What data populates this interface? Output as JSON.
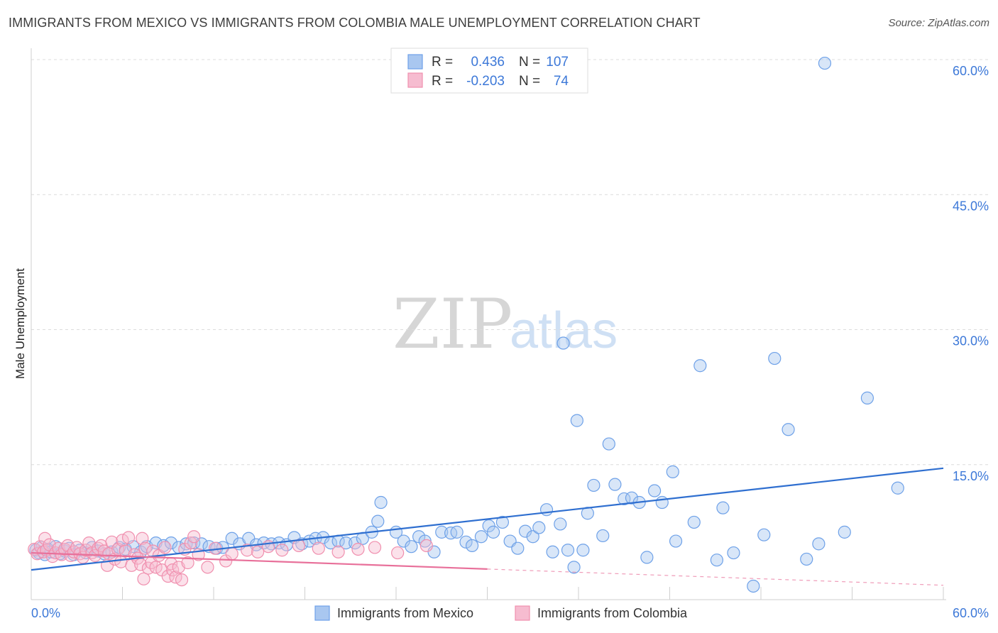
{
  "title": "IMMIGRANTS FROM MEXICO VS IMMIGRANTS FROM COLOMBIA MALE UNEMPLOYMENT CORRELATION CHART",
  "source": "Source: ZipAtlas.com",
  "watermark": {
    "zip": "ZIP",
    "atlas": "atlas"
  },
  "colors": {
    "mexico": "#6ea1e8",
    "mexico_fill": "#a9c7f0",
    "mexico_line": "#2f6fd0",
    "colombia": "#f08fae",
    "colombia_fill": "#f6bcd0",
    "colombia_line": "#e8709a",
    "tick_text": "#3c78d8"
  },
  "legend": {
    "rows": [
      {
        "r_label": "R =",
        "r_value": "0.436",
        "n_label": "N =",
        "n_value": "107"
      },
      {
        "r_label": "R =",
        "r_value": "-0.203",
        "n_label": "N =",
        "n_value": "74"
      }
    ]
  },
  "chart_data": {
    "type": "scatter",
    "title": "IMMIGRANTS FROM MEXICO VS IMMIGRANTS FROM COLOMBIA MALE UNEMPLOYMENT CORRELATION CHART",
    "xlabel": "",
    "ylabel": "Male Unemployment",
    "xlim": [
      0,
      60
    ],
    "ylim": [
      0,
      62
    ],
    "x_tick_labels": [
      "0.0%",
      "60.0%"
    ],
    "y_ticks": [
      15,
      30,
      45,
      60
    ],
    "y_tick_labels": [
      "15.0%",
      "30.0%",
      "45.0%",
      "60.0%"
    ],
    "grid": true,
    "legend_position": "top-center",
    "series": [
      {
        "name": "Immigrants from Mexico",
        "r": 0.436,
        "n": 107,
        "trend": {
          "x": [
            0,
            60
          ],
          "y": [
            3.3,
            14.6
          ],
          "dashed_from": null
        },
        "points": [
          [
            0.3,
            5.5
          ],
          [
            0.5,
            5.2
          ],
          [
            0.7,
            5.8
          ],
          [
            0.9,
            5.0
          ],
          [
            1.1,
            5.6
          ],
          [
            1.3,
            5.3
          ],
          [
            1.6,
            5.9
          ],
          [
            1.9,
            5.1
          ],
          [
            2.2,
            5.4
          ],
          [
            2.5,
            5.7
          ],
          [
            2.8,
            5.0
          ],
          [
            3.2,
            5.5
          ],
          [
            3.6,
            5.2
          ],
          [
            4.0,
            5.8
          ],
          [
            4.4,
            5.4
          ],
          [
            4.8,
            5.1
          ],
          [
            5.3,
            5.3
          ],
          [
            5.8,
            5.8
          ],
          [
            6.2,
            5.6
          ],
          [
            6.7,
            5.9
          ],
          [
            7.2,
            5.3
          ],
          [
            7.6,
            5.9
          ],
          [
            8.2,
            6.3
          ],
          [
            8.7,
            6.0
          ],
          [
            9.2,
            6.3
          ],
          [
            9.7,
            5.8
          ],
          [
            10.2,
            6.2
          ],
          [
            10.7,
            6.3
          ],
          [
            11.2,
            6.2
          ],
          [
            11.7,
            5.9
          ],
          [
            12.2,
            5.7
          ],
          [
            12.6,
            5.8
          ],
          [
            13.2,
            6.8
          ],
          [
            13.7,
            6.2
          ],
          [
            14.3,
            6.8
          ],
          [
            14.8,
            6.1
          ],
          [
            15.3,
            6.3
          ],
          [
            15.8,
            6.2
          ],
          [
            16.3,
            6.3
          ],
          [
            16.8,
            6.1
          ],
          [
            17.3,
            6.9
          ],
          [
            17.8,
            6.2
          ],
          [
            18.3,
            6.5
          ],
          [
            18.7,
            6.8
          ],
          [
            19.2,
            6.9
          ],
          [
            19.7,
            6.3
          ],
          [
            20.2,
            6.5
          ],
          [
            20.7,
            6.3
          ],
          [
            21.3,
            6.3
          ],
          [
            21.8,
            6.8
          ],
          [
            22.4,
            7.5
          ],
          [
            22.8,
            8.7
          ],
          [
            23.0,
            10.8
          ],
          [
            24.0,
            7.5
          ],
          [
            24.5,
            6.5
          ],
          [
            25.0,
            5.9
          ],
          [
            25.5,
            7.0
          ],
          [
            25.9,
            6.5
          ],
          [
            26.5,
            5.3
          ],
          [
            27.0,
            7.5
          ],
          [
            27.6,
            7.4
          ],
          [
            28.0,
            7.5
          ],
          [
            28.6,
            6.4
          ],
          [
            29.0,
            6.0
          ],
          [
            29.6,
            7.0
          ],
          [
            30.1,
            8.2
          ],
          [
            30.4,
            7.5
          ],
          [
            31.0,
            8.6
          ],
          [
            31.5,
            6.5
          ],
          [
            32.0,
            5.7
          ],
          [
            32.5,
            7.6
          ],
          [
            33.0,
            7.0
          ],
          [
            33.4,
            8.0
          ],
          [
            33.9,
            10.0
          ],
          [
            34.3,
            5.3
          ],
          [
            34.8,
            8.4
          ],
          [
            35.0,
            28.5
          ],
          [
            35.3,
            5.5
          ],
          [
            35.7,
            3.6
          ],
          [
            35.9,
            19.9
          ],
          [
            36.3,
            5.5
          ],
          [
            36.6,
            9.6
          ],
          [
            37.0,
            12.7
          ],
          [
            37.6,
            7.1
          ],
          [
            38.0,
            17.3
          ],
          [
            38.4,
            12.8
          ],
          [
            39.0,
            11.2
          ],
          [
            39.5,
            11.3
          ],
          [
            40.0,
            10.8
          ],
          [
            40.5,
            4.7
          ],
          [
            41.0,
            12.1
          ],
          [
            41.5,
            10.8
          ],
          [
            42.2,
            14.2
          ],
          [
            42.4,
            6.5
          ],
          [
            43.6,
            8.6
          ],
          [
            44.0,
            26.0
          ],
          [
            45.1,
            4.4
          ],
          [
            45.5,
            10.2
          ],
          [
            46.2,
            5.2
          ],
          [
            47.5,
            1.5
          ],
          [
            48.2,
            7.2
          ],
          [
            48.9,
            26.8
          ],
          [
            49.8,
            18.9
          ],
          [
            51.0,
            4.5
          ],
          [
            51.8,
            6.2
          ],
          [
            52.2,
            59.6
          ],
          [
            53.5,
            7.5
          ],
          [
            55.0,
            22.4
          ],
          [
            57.0,
            12.4
          ]
        ]
      },
      {
        "name": "Immigrants from Colombia",
        "r": -0.203,
        "n": 74,
        "trend": {
          "x": [
            0,
            30,
            60
          ],
          "y": [
            5.2,
            3.4,
            1.6
          ],
          "dashed_from": 30
        },
        "points": [
          [
            0.2,
            5.6
          ],
          [
            0.4,
            5.1
          ],
          [
            0.6,
            5.9
          ],
          [
            0.8,
            5.3
          ],
          [
            0.9,
            6.8
          ],
          [
            1.0,
            5.5
          ],
          [
            1.2,
            6.1
          ],
          [
            1.4,
            4.8
          ],
          [
            1.6,
            5.2
          ],
          [
            1.8,
            5.7
          ],
          [
            2.0,
            5.0
          ],
          [
            2.2,
            5.6
          ],
          [
            2.4,
            6.0
          ],
          [
            2.6,
            4.9
          ],
          [
            2.8,
            5.3
          ],
          [
            3.0,
            5.8
          ],
          [
            3.2,
            5.1
          ],
          [
            3.4,
            4.7
          ],
          [
            3.6,
            5.5
          ],
          [
            3.8,
            6.3
          ],
          [
            4.0,
            5.2
          ],
          [
            4.2,
            4.9
          ],
          [
            4.4,
            5.7
          ],
          [
            4.6,
            6.0
          ],
          [
            4.8,
            5.4
          ],
          [
            5.0,
            3.8
          ],
          [
            5.1,
            5.1
          ],
          [
            5.3,
            6.4
          ],
          [
            5.5,
            4.5
          ],
          [
            5.7,
            5.6
          ],
          [
            5.9,
            4.2
          ],
          [
            6.0,
            6.6
          ],
          [
            6.2,
            5.4
          ],
          [
            6.4,
            6.9
          ],
          [
            6.6,
            3.8
          ],
          [
            6.8,
            5.0
          ],
          [
            7.0,
            4.6
          ],
          [
            7.2,
            3.9
          ],
          [
            7.3,
            6.8
          ],
          [
            7.4,
            2.3
          ],
          [
            7.5,
            5.7
          ],
          [
            7.7,
            3.5
          ],
          [
            7.9,
            4.1
          ],
          [
            8.0,
            5.4
          ],
          [
            8.2,
            3.6
          ],
          [
            8.4,
            4.9
          ],
          [
            8.6,
            3.3
          ],
          [
            8.8,
            5.8
          ],
          [
            9.0,
            2.6
          ],
          [
            9.2,
            4.0
          ],
          [
            9.3,
            3.3
          ],
          [
            9.5,
            2.5
          ],
          [
            9.7,
            3.6
          ],
          [
            9.9,
            2.2
          ],
          [
            10.1,
            5.6
          ],
          [
            10.3,
            4.1
          ],
          [
            10.5,
            6.3
          ],
          [
            10.7,
            7.0
          ],
          [
            11.0,
            5.0
          ],
          [
            11.6,
            3.6
          ],
          [
            12.1,
            5.7
          ],
          [
            12.8,
            4.3
          ],
          [
            13.2,
            5.1
          ],
          [
            14.2,
            5.5
          ],
          [
            14.9,
            5.3
          ],
          [
            15.6,
            5.9
          ],
          [
            16.5,
            5.5
          ],
          [
            17.6,
            6.0
          ],
          [
            18.9,
            5.7
          ],
          [
            20.2,
            5.3
          ],
          [
            21.5,
            5.6
          ],
          [
            22.6,
            5.8
          ],
          [
            24.1,
            5.2
          ],
          [
            26.0,
            6.0
          ]
        ]
      }
    ]
  },
  "bottom_legend": {
    "mexico_label": "Immigrants from Mexico",
    "colombia_label": "Immigrants from Colombia"
  }
}
